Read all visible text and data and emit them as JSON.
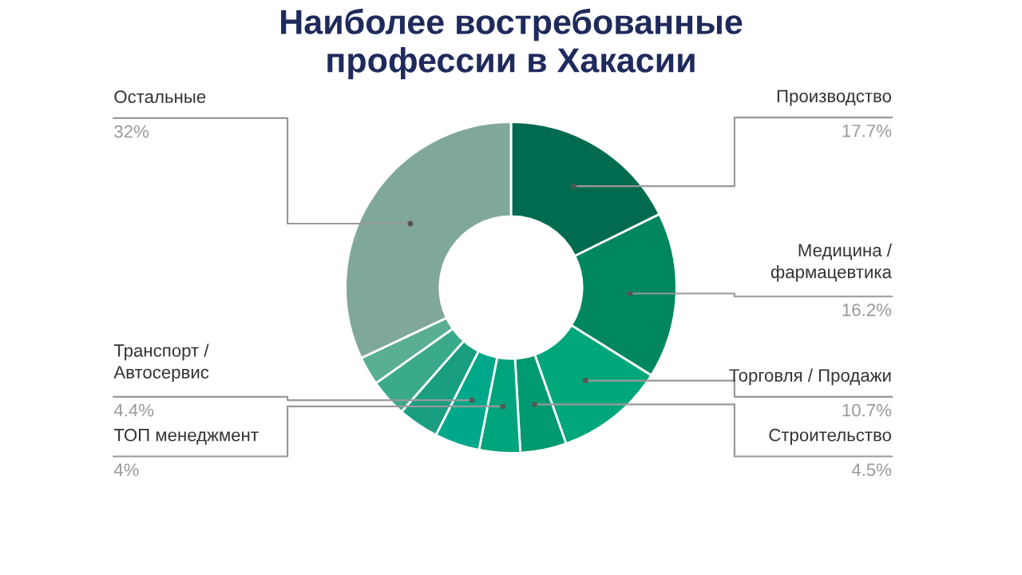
{
  "chart_data": {
    "type": "donut",
    "title": "Наиболее востребованные\nпрофессии в Хакасии",
    "categories": [
      "Производство",
      "Медицина /\nфармацевтика",
      "Торговля / Продажи",
      "Строительство",
      "ТОП менеджмент",
      "Транспорт /\nАвтосервис",
      null,
      null,
      null,
      "Остальные"
    ],
    "values": [
      17.7,
      16.2,
      10.7,
      4.5,
      4,
      4.4,
      4.0,
      3.7,
      2.8,
      32
    ],
    "colors": [
      "#006b4f",
      "#00875f",
      "#00a77a",
      "#009a70",
      "#00a47c",
      "#00a88a",
      "#1a9e80",
      "#3aaa8a",
      "#5aae94",
      "#80a898"
    ],
    "value_labels": [
      "17.7%",
      "16.2%",
      "10.7%",
      "4.5%",
      "4%",
      "4.4%",
      null,
      null,
      null,
      "32%"
    ]
  }
}
